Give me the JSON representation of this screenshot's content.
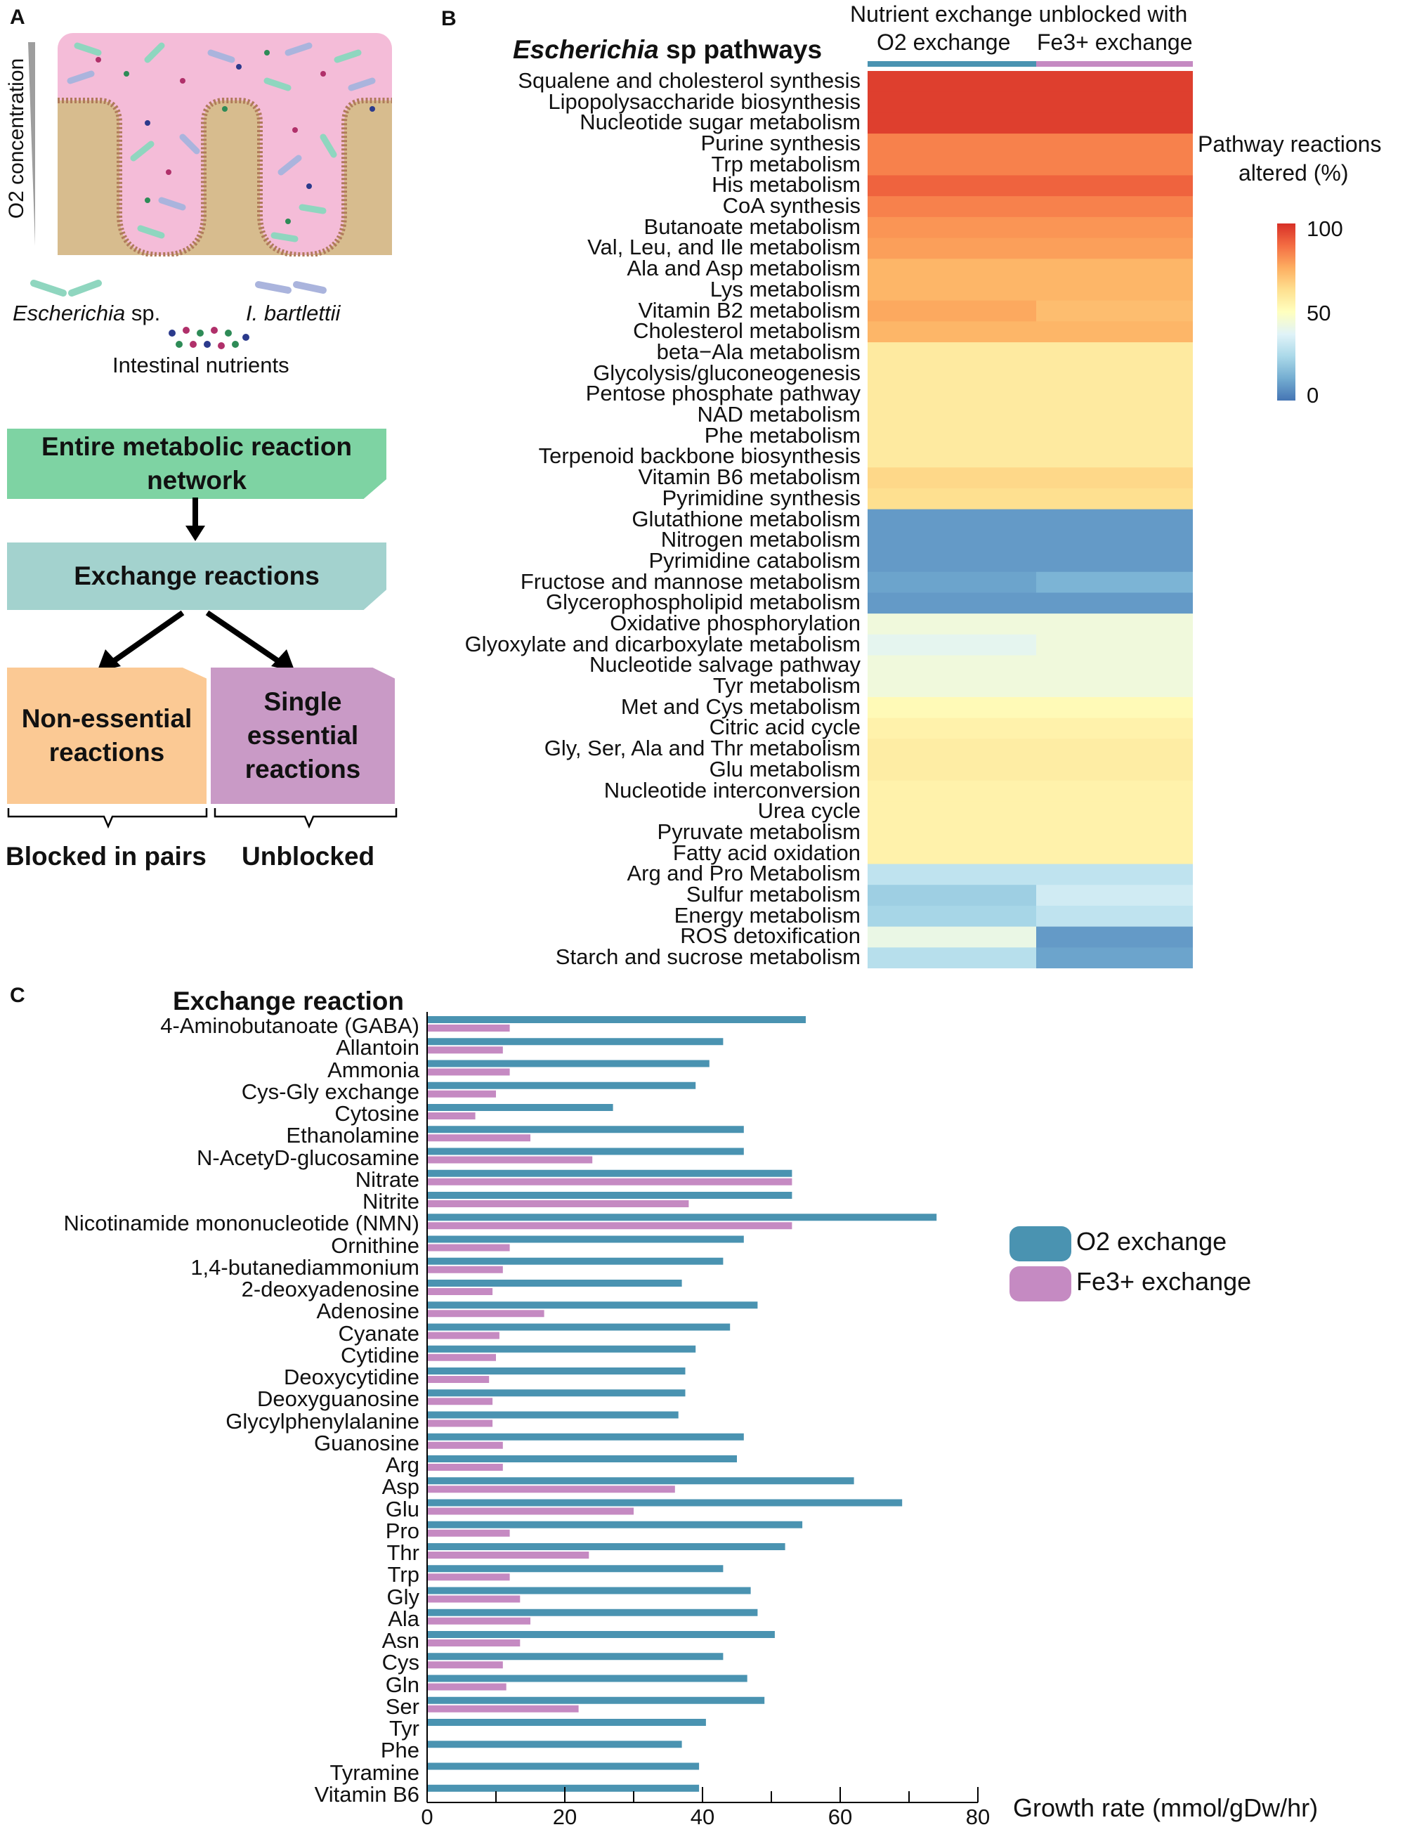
{
  "panels": {
    "a": "A",
    "b": "B",
    "c": "C"
  },
  "panel_a": {
    "y_axis_label": "O2 concentration",
    "organisms": {
      "escherichia": "Escherichia",
      "escherichia_suffix": "sp.",
      "bartlettii": "I. bartlettii"
    },
    "nutrients_label": "Intestinal nutrients",
    "flow": {
      "box1": "Entire metabolic reaction network",
      "box2": "Exchange reactions",
      "box3": "Non-essential reactions",
      "box4": "Single essential reactions",
      "bracket_left": "Blocked in pairs",
      "bracket_right": "Unblocked"
    },
    "colors": {
      "lumen": "#f4bcd8",
      "tissue": "#d7bc8e",
      "membrane": "#b07a5a",
      "box_green": "#7ed3a3",
      "box_teal": "#a3d2ce",
      "box_orange": "#fbc994",
      "box_purple": "#c99ac6",
      "rod_green": "#8fd6bf",
      "rod_blue": "#aab4dd"
    }
  },
  "panel_b": {
    "title_italic": "Escherichia",
    "title_rest": " sp pathways",
    "header": "Nutrient exchange unblocked with",
    "col_o2": "O2 exchange",
    "col_fe": "Fe3+ exchange",
    "legend_title_1": "Pathway reactions",
    "legend_title_2": "altered (%)",
    "legend_ticks": [
      "100",
      "50",
      "0"
    ],
    "heatmap": {
      "type": "heatmap",
      "value_range": [
        0,
        100
      ],
      "columns": [
        "O2 exchange",
        "Fe3+ exchange"
      ],
      "rows": [
        {
          "name": "Squalene and cholesterol synthesis",
          "o2": 97,
          "fe": 97
        },
        {
          "name": "Lipopolysaccharide biosynthesis",
          "o2": 97,
          "fe": 97
        },
        {
          "name": "Nucleotide sugar metabolism",
          "o2": 97,
          "fe": 97
        },
        {
          "name": "Purine synthesis",
          "o2": 84,
          "fe": 84
        },
        {
          "name": "Trp metabolism",
          "o2": 84,
          "fe": 84
        },
        {
          "name": "His metabolism",
          "o2": 90,
          "fe": 90
        },
        {
          "name": "CoA synthesis",
          "o2": 84,
          "fe": 84
        },
        {
          "name": "Butanoate metabolism",
          "o2": 80,
          "fe": 80
        },
        {
          "name": "Val, Leu, and Ile metabolism",
          "o2": 78,
          "fe": 78
        },
        {
          "name": "Ala and Asp metabolism",
          "o2": 73,
          "fe": 73
        },
        {
          "name": "Lys metabolism",
          "o2": 73,
          "fe": 73
        },
        {
          "name": "Vitamin B2 metabolism",
          "o2": 76,
          "fe": 71
        },
        {
          "name": "Cholesterol metabolism",
          "o2": 73,
          "fe": 73
        },
        {
          "name": "beta−Ala metabolism",
          "o2": 58,
          "fe": 58
        },
        {
          "name": "Glycolysis/gluconeogenesis",
          "o2": 58,
          "fe": 58
        },
        {
          "name": "Pentose phosphate pathway",
          "o2": 58,
          "fe": 58
        },
        {
          "name": "NAD metabolism",
          "o2": 58,
          "fe": 58
        },
        {
          "name": "Phe metabolism",
          "o2": 58,
          "fe": 58
        },
        {
          "name": "Terpenoid backbone biosynthesis",
          "o2": 58,
          "fe": 58
        },
        {
          "name": "Vitamin B6 metabolism",
          "o2": 64,
          "fe": 64
        },
        {
          "name": "Pyrimidine synthesis",
          "o2": 62,
          "fe": 62
        },
        {
          "name": "Glutathione metabolism",
          "o2": 8,
          "fe": 8
        },
        {
          "name": "Nitrogen metabolism",
          "o2": 8,
          "fe": 8
        },
        {
          "name": "Pyrimidine catabolism",
          "o2": 8,
          "fe": 8
        },
        {
          "name": "Fructose and mannose metabolism",
          "o2": 10,
          "fe": 14
        },
        {
          "name": "Glycerophospholipid metabolism",
          "o2": 8,
          "fe": 8
        },
        {
          "name": "Oxidative phosphorylation",
          "o2": 44,
          "fe": 44
        },
        {
          "name": "Glyoxylate and dicarboxylate metabolism",
          "o2": 40,
          "fe": 44
        },
        {
          "name": "Nucleotide salvage pathway",
          "o2": 44,
          "fe": 44
        },
        {
          "name": "Tyr metabolism",
          "o2": 44,
          "fe": 44
        },
        {
          "name": "Met and Cys metabolism",
          "o2": 52,
          "fe": 52
        },
        {
          "name": "Citric acid cycle",
          "o2": 55,
          "fe": 55
        },
        {
          "name": "Gly, Ser, Ala and Thr metabolism",
          "o2": 57,
          "fe": 57
        },
        {
          "name": "Glu metabolism",
          "o2": 57,
          "fe": 57
        },
        {
          "name": "Nucleotide interconversion",
          "o2": 55,
          "fe": 55
        },
        {
          "name": "Urea cycle",
          "o2": 55,
          "fe": 55
        },
        {
          "name": "Pyruvate metabolism",
          "o2": 55,
          "fe": 55
        },
        {
          "name": "Fatty acid oxidation",
          "o2": 55,
          "fe": 55
        },
        {
          "name": "Arg and Pro Metabolism",
          "o2": 30,
          "fe": 30
        },
        {
          "name": "Sulfur metabolism",
          "o2": 22,
          "fe": 34
        },
        {
          "name": "Energy metabolism",
          "o2": 24,
          "fe": 30
        },
        {
          "name": "ROS detoxification",
          "o2": 42,
          "fe": 8
        },
        {
          "name": "Starch and sucrose metabolism",
          "o2": 28,
          "fe": 10
        }
      ]
    }
  },
  "panel_c": {
    "title": "Exchange reaction",
    "legend": {
      "o2_label": "O2 exchange",
      "fe_label": "Fe3+ exchange"
    },
    "colors": {
      "o2": "#4a93b1",
      "fe": "#c58ac2"
    },
    "chart_data": {
      "type": "bar",
      "orientation": "horizontal",
      "xlabel": "Growth rate (mmol/gDw/hr)",
      "xlim": [
        0,
        80
      ],
      "xticks": [
        "0",
        "20",
        "40",
        "60",
        "80"
      ],
      "categories": [
        "4-Aminobutanoate (GABA)",
        "Allantoin",
        "Ammonia",
        "Cys-Gly exchange",
        "Cytosine",
        "Ethanolamine",
        "N-AcetyD-glucosamine",
        "Nitrate",
        "Nitrite",
        "Nicotinamide mononucleotide (NMN)",
        "Ornithine",
        "1,4-butanediammonium",
        "2-deoxyadenosine",
        "Adenosine",
        "Cyanate",
        "Cytidine",
        "Deoxycytidine",
        "Deoxyguanosine",
        "Glycylphenylalanine",
        "Guanosine",
        "Arg",
        "Asp",
        "Glu",
        "Pro",
        "Thr",
        "Trp",
        "Gly",
        "Ala",
        "Asn",
        "Cys",
        "Gln",
        "Ser",
        "Tyr",
        "Phe",
        "Tyramine",
        "Vitamin B6"
      ],
      "series": [
        {
          "name": "O2 exchange",
          "values": [
            55,
            43,
            41,
            39,
            27,
            46,
            46,
            53,
            53,
            74,
            46,
            43,
            37,
            48,
            44,
            39,
            37.5,
            37.5,
            36.5,
            46,
            45,
            62,
            69,
            54.5,
            52,
            43,
            47,
            48,
            50.5,
            43,
            46.5,
            49,
            40.5,
            37,
            39.5,
            39.5
          ]
        },
        {
          "name": "Fe3+ exchange",
          "values": [
            12,
            11,
            12,
            10,
            7,
            15,
            24,
            53,
            38,
            53,
            12,
            11,
            9.5,
            17,
            10.5,
            10,
            9,
            9.5,
            9.5,
            11,
            11,
            36,
            30,
            12,
            23.5,
            12,
            13.5,
            15,
            13.5,
            11,
            11.5,
            22,
            0,
            0,
            0,
            0
          ]
        }
      ]
    }
  }
}
